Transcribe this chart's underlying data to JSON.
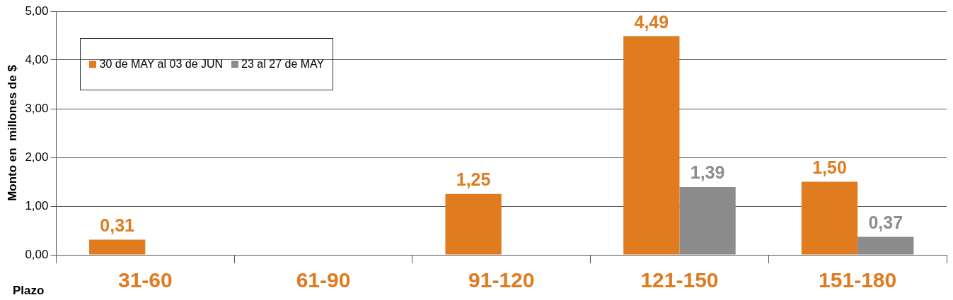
{
  "chart_data": {
    "type": "bar",
    "xlabel": "Plazo",
    "ylabel": "Monto en  millones de $",
    "categories": [
      "31-60",
      "61-90",
      "91-120",
      "121-150",
      "151-180"
    ],
    "series": [
      {
        "name": "30 de MAY al 03 de JUN",
        "color": "#e07b20",
        "values": [
          0.31,
          null,
          1.25,
          4.49,
          1.5
        ],
        "value_labels": [
          "0,31",
          null,
          "1,25",
          "4,49",
          "1,50"
        ]
      },
      {
        "name": "23 al 27 de MAY",
        "color": "#8c8c8c",
        "values": [
          null,
          null,
          null,
          1.39,
          0.37
        ],
        "value_labels": [
          null,
          null,
          null,
          "1,39",
          "0,37"
        ]
      }
    ],
    "ylim": [
      0,
      5
    ],
    "yticks": [
      {
        "value": 0,
        "label": "0,00"
      },
      {
        "value": 1,
        "label": "1,00"
      },
      {
        "value": 2,
        "label": "2,00"
      },
      {
        "value": 3,
        "label": "3,00"
      },
      {
        "value": 4,
        "label": "4,00"
      },
      {
        "value": 5,
        "label": "5,00"
      }
    ],
    "grid": "y",
    "legend": "top left"
  }
}
